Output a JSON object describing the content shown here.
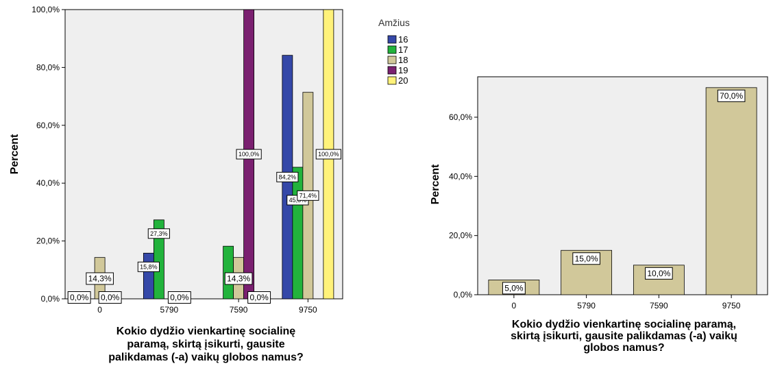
{
  "chart_data": [
    {
      "type": "bar",
      "categories": [
        "0",
        "5790",
        "7590",
        "9750"
      ],
      "xlabel": "Kokio dydžio vienkartinę socialinę paramą, skirtą įsikurti, gausite palikdamas (-a) vaikų globos namus?",
      "xlabel_lines": [
        "Kokio dydžio vienkartinę socialinę",
        "paramą, skirtą įsikurti, gausite",
        "palikdamas (-a) vaikų globos namus?"
      ],
      "ylabel": "Percent",
      "ylim": [
        0,
        100
      ],
      "yticks": [
        "0,0%",
        "20,0%",
        "40,0%",
        "60,0%",
        "80,0%",
        "100,0%"
      ],
      "grid": false,
      "legend": {
        "title": "Amžius",
        "placement": "right"
      },
      "series": [
        {
          "name": "16",
          "color": "#3548a8",
          "values": [
            0,
            15.8,
            0,
            84.2
          ],
          "labels": [
            "0,0%",
            "15,8%",
            "",
            "84,2%"
          ]
        },
        {
          "name": "17",
          "color": "#22b33c",
          "values": [
            0,
            27.3,
            18.2,
            45.5
          ],
          "labels": [
            "",
            "27,3%",
            "",
            "45,5%"
          ]
        },
        {
          "name": "18",
          "color": "#d1c89a",
          "values": [
            14.3,
            0,
            14.3,
            71.4
          ],
          "labels": [
            "14,3%",
            "",
            "14,3%",
            "71,4%"
          ]
        },
        {
          "name": "19",
          "color": "#7a2070",
          "values": [
            0,
            0,
            100,
            0
          ],
          "labels": [
            "0,0%",
            "0,0%",
            "100,0%",
            ""
          ]
        },
        {
          "name": "20",
          "color": "#fff27a",
          "values": [
            0,
            0,
            0,
            100
          ],
          "labels": [
            "",
            "",
            "0,0%",
            "100,0%"
          ]
        }
      ]
    },
    {
      "type": "bar",
      "categories": [
        "0",
        "5790",
        "7590",
        "9750"
      ],
      "xlabel": "Kokio dydžio vienkartinę socialinę paramą, skirtą įsikurti, gausite palikdamas (-a) vaikų globos namus?",
      "xlabel_lines": [
        "Kokio dydžio vienkartinę socialinę paramą,",
        "skirtą įsikurti, gausite palikdamas (-a) vaikų",
        "globos namus?"
      ],
      "ylabel": "Percent",
      "ylim": [
        0,
        70
      ],
      "yticks": [
        "0,0%",
        "20,0%",
        "40,0%",
        "60,0%"
      ],
      "grid": false,
      "series": [
        {
          "color": "#d1c89a",
          "values": [
            5.0,
            15.0,
            10.0,
            70.0
          ],
          "labels": [
            "5,0%",
            "15,0%",
            "10,0%",
            "70,0%"
          ]
        }
      ]
    }
  ]
}
